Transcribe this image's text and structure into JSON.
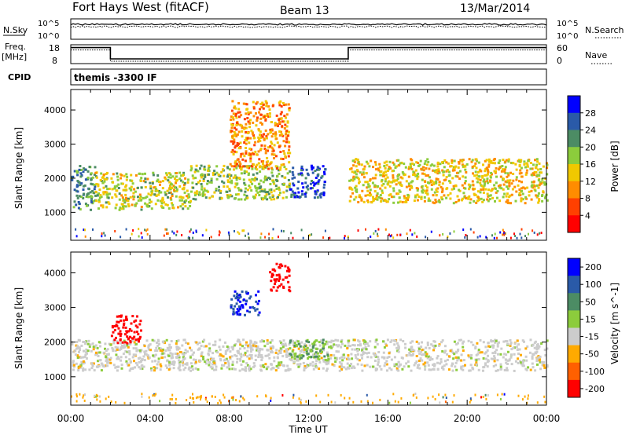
{
  "header": {
    "station": "Fort Hays West (fitACF)",
    "beam": "Beam 13",
    "date": "13/Mar/2014"
  },
  "strips": {
    "nsky_label": "N.Sky",
    "nsky_ticks": [
      "10^5",
      "10^0"
    ],
    "nsearch_label": "N.Search",
    "nsearch_ticks": [
      "10^5",
      "10^0"
    ],
    "freq_label_1": "Freq.",
    "freq_label_2": "[MHz]",
    "freq_ticks": [
      "18",
      "8"
    ],
    "nave_label": "Nave",
    "nave_ticks": [
      "60",
      "0"
    ],
    "cpid_label": "CPID",
    "cpid_value": "themis -3300 IF",
    "freq_profile": [
      {
        "x": 0,
        "mhz": 16.5
      },
      {
        "x": 2.0,
        "mhz": 16.5
      },
      {
        "x": 2.0,
        "mhz": 10.5
      },
      {
        "x": 14.0,
        "mhz": 10.5
      },
      {
        "x": 14.0,
        "mhz": 16.5
      },
      {
        "x": 24,
        "mhz": 16.5
      }
    ]
  },
  "chart_data": [
    {
      "type": "heatmap",
      "title": "",
      "xlabel": "Time UT",
      "ylabel": "Slant Range [km]",
      "xlim": [
        0,
        24
      ],
      "ylim": [
        180,
        4600
      ],
      "x_ticks": [
        "00:00",
        "04:00",
        "08:00",
        "12:00",
        "16:00",
        "20:00",
        "00:00"
      ],
      "y_ticks": [
        1000,
        2000,
        3000,
        4000
      ],
      "colorbar": {
        "label": "Power [dB]",
        "ticks": [
          4,
          8,
          12,
          16,
          20,
          24,
          28
        ],
        "colors": [
          "#0000ff",
          "#2a5aa8",
          "#4c8c64",
          "#8ccc3c",
          "#f0c800",
          "#ff8c00",
          "#ff4000",
          "#ff0000"
        ]
      },
      "regions": [
        {
          "x": [
            0,
            1.2
          ],
          "range": [
            1100,
            2400
          ],
          "value": 22
        },
        {
          "x": [
            1.2,
            6
          ],
          "range": [
            1100,
            2200
          ],
          "value": 16
        },
        {
          "x": [
            6,
            11
          ],
          "range": [
            1400,
            2400
          ],
          "value": 18
        },
        {
          "x": [
            11,
            12.8
          ],
          "range": [
            1450,
            2400
          ],
          "value": 26
        },
        {
          "x": [
            14,
            24
          ],
          "range": [
            1300,
            2600
          ],
          "value": 14
        },
        {
          "x": [
            8,
            11
          ],
          "range": [
            2300,
            4300
          ],
          "value": 10
        }
      ]
    },
    {
      "type": "heatmap",
      "title": "",
      "xlabel": "Time UT",
      "ylabel": "Slant Range [km]",
      "xlim": [
        0,
        24
      ],
      "ylim": [
        180,
        4600
      ],
      "x_ticks": [
        "00:00",
        "04:00",
        "08:00",
        "12:00",
        "16:00",
        "20:00",
        "00:00"
      ],
      "y_ticks": [
        1000,
        2000,
        3000,
        4000
      ],
      "colorbar": {
        "label": "Velocity [m s^-1]",
        "ticks": [
          200,
          100,
          50,
          15,
          -15,
          -50,
          -100,
          -200
        ],
        "colors": [
          "#0000ff",
          "#2a5aa8",
          "#4c8c64",
          "#8ccc3c",
          "#cccccc",
          "#ffaa00",
          "#ff6000",
          "#ff0000"
        ]
      },
      "regions": [
        {
          "x": [
            0,
            24
          ],
          "range": [
            1200,
            2100
          ],
          "value": 0
        },
        {
          "x": [
            2,
            3.5
          ],
          "range": [
            2000,
            2800
          ],
          "value": -200
        },
        {
          "x": [
            8,
            9.5
          ],
          "range": [
            2800,
            3500
          ],
          "value": 200
        },
        {
          "x": [
            10,
            11
          ],
          "range": [
            3500,
            4300
          ],
          "value": -200
        },
        {
          "x": [
            11,
            13
          ],
          "range": [
            1500,
            2100
          ],
          "value": 50
        }
      ]
    }
  ]
}
